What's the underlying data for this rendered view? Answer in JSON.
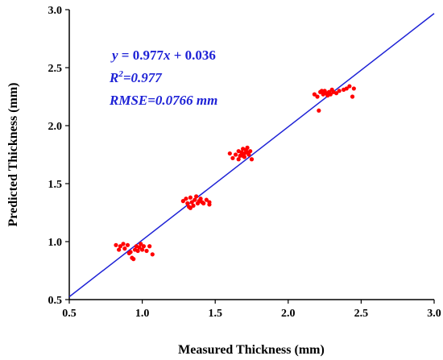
{
  "chart_data": {
    "type": "scatter",
    "xlabel": "Measured Thickness (mm)",
    "ylabel": "Predicted Thickness (mm)",
    "xlim": [
      0.5,
      3.0
    ],
    "ylim": [
      0.5,
      3.0
    ],
    "xticks": [
      "0.5",
      "1.0",
      "1.5",
      "2.0",
      "2.5",
      "3.0"
    ],
    "yticks": [
      "0.5",
      "1.0",
      "1.5",
      "2.0",
      "2.5",
      "3.0"
    ],
    "grid": false,
    "annotations": {
      "equation_lhs": "y",
      "equation_rhs": " = 0.977",
      "equation_var": "x",
      "equation_tail": " + 0.036",
      "r2_prefix": "R",
      "r2_sup": "2",
      "r2_value": "=0.977",
      "rmse": "RMSE=0.0766 mm"
    },
    "fit_line": {
      "slope": 0.977,
      "intercept": 0.036,
      "color": "#1e22d6"
    },
    "point_color": "#ff0000",
    "points": [
      [
        0.82,
        0.97
      ],
      [
        0.84,
        0.93
      ],
      [
        0.85,
        0.96
      ],
      [
        0.87,
        0.98
      ],
      [
        0.88,
        0.94
      ],
      [
        0.9,
        0.97
      ],
      [
        0.91,
        0.9
      ],
      [
        0.93,
        0.86
      ],
      [
        0.94,
        0.85
      ],
      [
        0.95,
        0.93
      ],
      [
        0.96,
        0.96
      ],
      [
        0.97,
        0.92
      ],
      [
        0.98,
        0.95
      ],
      [
        0.99,
        0.98
      ],
      [
        1.0,
        0.93
      ],
      [
        1.01,
        0.96
      ],
      [
        1.03,
        0.92
      ],
      [
        1.05,
        0.96
      ],
      [
        1.07,
        0.89
      ],
      [
        0.92,
        0.91
      ],
      [
        1.28,
        1.35
      ],
      [
        1.3,
        1.37
      ],
      [
        1.31,
        1.33
      ],
      [
        1.32,
        1.3
      ],
      [
        1.33,
        1.38
      ],
      [
        1.34,
        1.34
      ],
      [
        1.35,
        1.31
      ],
      [
        1.36,
        1.36
      ],
      [
        1.37,
        1.39
      ],
      [
        1.38,
        1.33
      ],
      [
        1.39,
        1.35
      ],
      [
        1.4,
        1.37
      ],
      [
        1.41,
        1.34
      ],
      [
        1.42,
        1.33
      ],
      [
        1.44,
        1.36
      ],
      [
        1.46,
        1.34
      ],
      [
        1.46,
        1.32
      ],
      [
        1.33,
        1.29
      ],
      [
        1.6,
        1.76
      ],
      [
        1.62,
        1.72
      ],
      [
        1.64,
        1.75
      ],
      [
        1.66,
        1.78
      ],
      [
        1.67,
        1.74
      ],
      [
        1.68,
        1.77
      ],
      [
        1.69,
        1.8
      ],
      [
        1.7,
        1.76
      ],
      [
        1.7,
        1.73
      ],
      [
        1.71,
        1.79
      ],
      [
        1.72,
        1.77
      ],
      [
        1.72,
        1.81
      ],
      [
        1.73,
        1.75
      ],
      [
        1.74,
        1.78
      ],
      [
        1.75,
        1.71
      ],
      [
        1.66,
        1.71
      ],
      [
        1.69,
        1.74
      ],
      [
        2.18,
        2.27
      ],
      [
        2.2,
        2.25
      ],
      [
        2.21,
        2.13
      ],
      [
        2.22,
        2.29
      ],
      [
        2.24,
        2.27
      ],
      [
        2.25,
        2.3
      ],
      [
        2.26,
        2.28
      ],
      [
        2.27,
        2.26
      ],
      [
        2.28,
        2.29
      ],
      [
        2.29,
        2.27
      ],
      [
        2.3,
        2.31
      ],
      [
        2.31,
        2.29
      ],
      [
        2.33,
        2.28
      ],
      [
        2.35,
        2.3
      ],
      [
        2.38,
        2.31
      ],
      [
        2.4,
        2.32
      ],
      [
        2.42,
        2.34
      ],
      [
        2.44,
        2.25
      ],
      [
        2.45,
        2.32
      ],
      [
        2.23,
        2.3
      ]
    ]
  }
}
